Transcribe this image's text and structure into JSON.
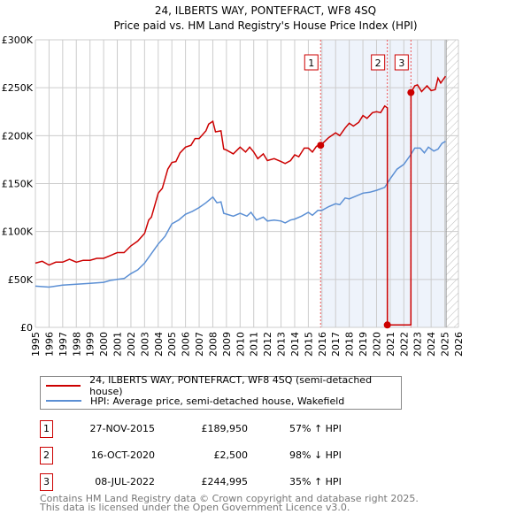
{
  "chart_data": {
    "type": "line",
    "title": "24, ILBERTS WAY, PONTEFRACT, WF8 4SQ",
    "subtitle": "Price paid vs. HM Land Registry's House Price Index (HPI)",
    "xlim": [
      1995,
      2026
    ],
    "ylim": [
      0,
      300000
    ],
    "x_ticks": [
      "1995",
      "1996",
      "1997",
      "1998",
      "1999",
      "2000",
      "2001",
      "2002",
      "2003",
      "2004",
      "2005",
      "2006",
      "2007",
      "2008",
      "2009",
      "2010",
      "2011",
      "2012",
      "2013",
      "2014",
      "2015",
      "2016",
      "2017",
      "2018",
      "2019",
      "2020",
      "2021",
      "2022",
      "2023",
      "2024",
      "2025",
      "2026"
    ],
    "y_ticks": [
      {
        "v": 0,
        "label": "£0"
      },
      {
        "v": 50000,
        "label": "£50K"
      },
      {
        "v": 100000,
        "label": "£100K"
      },
      {
        "v": 150000,
        "label": "£150K"
      },
      {
        "v": 200000,
        "label": "£200K"
      },
      {
        "v": 250000,
        "label": "£250K"
      },
      {
        "v": 300000,
        "label": "£300K"
      }
    ],
    "grid": true,
    "shaded_period": [
      2015.9,
      2025.1
    ],
    "forecast_hatch_from": 2025.1,
    "series": [
      {
        "name": "24, ILBERTS WAY, PONTEFRACT, WF8 4SQ (semi-detached house)",
        "color": "#cc0000",
        "x": [
          1995,
          1995.5,
          1996,
          1996.5,
          1997,
          1997.5,
          1998,
          1998.5,
          1999,
          1999.5,
          2000,
          2000.5,
          2001,
          2001.5,
          2002,
          2002.5,
          2003,
          2003.3,
          2003.5,
          2004,
          2004.3,
          2004.7,
          2005,
          2005.3,
          2005.6,
          2006,
          2006.4,
          2006.7,
          2007,
          2007.5,
          2007.7,
          2008,
          2008.2,
          2008.6,
          2008.8,
          2009,
          2009.5,
          2010,
          2010.4,
          2010.7,
          2011,
          2011.3,
          2011.7,
          2012,
          2012.5,
          2013,
          2013.3,
          2013.7,
          2014,
          2014.3,
          2014.7,
          2015,
          2015.3,
          2015.6,
          2015.9,
          2016.5,
          2017,
          2017.3,
          2017.7,
          2018,
          2018.3,
          2018.7,
          2019,
          2019.3,
          2019.7,
          2020,
          2020.3,
          2020.6,
          2020.79,
          2020.791,
          2022.52,
          2022.521,
          2022.8,
          2023,
          2023.3,
          2023.7,
          2024,
          2024.3,
          2024.5,
          2024.7,
          2025.05
        ],
        "y": [
          67,
          69,
          65,
          68,
          68,
          71,
          68,
          70,
          70,
          72,
          72,
          75,
          78,
          78,
          85,
          90,
          98,
          112,
          115,
          140,
          145,
          165,
          172,
          173,
          182,
          188,
          190,
          197,
          197,
          205,
          212,
          215,
          204,
          205,
          186,
          185,
          181,
          188,
          183,
          188,
          183,
          176,
          181,
          174,
          176,
          173,
          171,
          174,
          180,
          178,
          187,
          187,
          183,
          189,
          190,
          198,
          203,
          200,
          208,
          213,
          210,
          214,
          221,
          218,
          224,
          225,
          224,
          231,
          229,
          2.5,
          2.5,
          245,
          252,
          253,
          246,
          252,
          247,
          248,
          260,
          255,
          262
        ]
      },
      {
        "name": "HPI: Average price, semi-detached house, Wakefield",
        "color": "#5b8fd4",
        "x": [
          1995,
          1996,
          1997,
          1998,
          1999,
          2000,
          2000.5,
          2001,
          2001.5,
          2002,
          2002.5,
          2003,
          2003.3,
          2004,
          2004.5,
          2005,
          2005.5,
          2006,
          2006.5,
          2007,
          2007.5,
          2008,
          2008.3,
          2008.6,
          2008.8,
          2009.5,
          2010,
          2010.5,
          2010.8,
          2011.2,
          2011.7,
          2012,
          2012.5,
          2013,
          2013.3,
          2013.7,
          2014,
          2014.5,
          2015,
          2015.3,
          2015.7,
          2016,
          2016.5,
          2017,
          2017.3,
          2017.7,
          2018,
          2018.5,
          2019,
          2019.5,
          2020,
          2020.6,
          2021,
          2021.5,
          2022,
          2022.5,
          2022.8,
          2023.2,
          2023.5,
          2023.8,
          2024.2,
          2024.5,
          2024.8,
          2025.05
        ],
        "y": [
          43,
          42,
          44,
          45,
          46,
          47,
          49,
          50,
          51,
          56,
          60,
          67,
          73,
          87,
          95,
          108,
          112,
          118,
          121,
          125,
          130,
          136,
          130,
          131,
          119,
          116,
          119,
          116,
          120,
          112,
          115,
          111,
          112,
          111,
          109,
          112,
          113,
          116,
          120,
          117,
          122,
          122,
          126,
          129,
          128,
          135,
          134,
          137,
          140,
          141,
          143,
          146,
          155,
          165,
          170,
          180,
          187,
          187,
          182,
          188,
          184,
          186,
          192,
          194
        ]
      }
    ],
    "y_units": "thousands GBP",
    "annotations": [
      {
        "id": "1",
        "x": 2015.9,
        "price": 189950
      },
      {
        "id": "2",
        "x": 2020.79,
        "price": 2500
      },
      {
        "id": "3",
        "x": 2022.52,
        "price": 244995
      }
    ]
  },
  "legend": {
    "items": [
      {
        "label": "24, ILBERTS WAY, PONTEFRACT, WF8 4SQ (semi-detached house)",
        "color": "#cc0000"
      },
      {
        "label": "HPI: Average price, semi-detached house, Wakefield",
        "color": "#5b8fd4"
      }
    ]
  },
  "transactions": [
    {
      "num": "1",
      "date": "27-NOV-2015",
      "price": "£189,950",
      "hpi": "57% ↑ HPI"
    },
    {
      "num": "2",
      "date": "16-OCT-2020",
      "price": "£2,500",
      "hpi": "98% ↓ HPI"
    },
    {
      "num": "3",
      "date": "08-JUL-2022",
      "price": "£244,995",
      "hpi": "35% ↑ HPI"
    }
  ],
  "footer": {
    "line1": "Contains HM Land Registry data © Crown copyright and database right 2025.",
    "line2": "This data is licensed under the Open Government Licence v3.0."
  }
}
